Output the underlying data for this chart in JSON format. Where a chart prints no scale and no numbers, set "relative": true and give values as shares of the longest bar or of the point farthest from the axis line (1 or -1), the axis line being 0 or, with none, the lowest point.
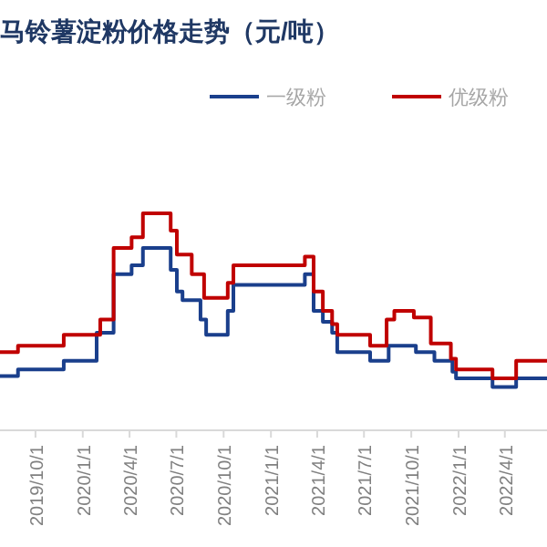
{
  "chart_data": {
    "type": "step",
    "title": "马铃薯淀粉价格走势（元/吨）",
    "relative": true,
    "legend": "top right",
    "grid": false,
    "xlim": [
      "2019-07-24",
      "2022-06-22"
    ],
    "xticks": [
      {
        "value": "2019-10-01",
        "label": "2019/10/1"
      },
      {
        "value": "2020-01-01",
        "label": "2020/1/1"
      },
      {
        "value": "2020-04-01",
        "label": "2020/4/1"
      },
      {
        "value": "2020-07-01",
        "label": "2020/7/1"
      },
      {
        "value": "2020-10-01",
        "label": "2020/10/1"
      },
      {
        "value": "2021-01-01",
        "label": "2021/1/1"
      },
      {
        "value": "2021-04-01",
        "label": "2021/4/1"
      },
      {
        "value": "2021-07-01",
        "label": "2021/7/1"
      },
      {
        "value": "2021-10-01",
        "label": "2021/10/1"
      },
      {
        "value": "2022-01-01",
        "label": "2022/1/1"
      },
      {
        "value": "2022-04-01",
        "label": "2022/4/1"
      }
    ],
    "series": [
      {
        "name": "一级粉",
        "color": "#1a3f8c",
        "x": [
          "2019-07-24",
          "2019-08-28",
          "2019-11-25",
          "2020-01-28",
          "2020-03-01",
          "2020-04-05",
          "2020-04-27",
          "2020-06-20",
          "2020-07-02",
          "2020-07-13",
          "2020-08-17",
          "2020-08-28",
          "2020-10-09",
          "2020-10-20",
          "2021-03-08",
          "2021-03-25",
          "2021-04-12",
          "2021-04-30",
          "2021-05-10",
          "2021-07-13",
          "2021-08-18",
          "2021-10-10",
          "2021-11-15",
          "2021-12-20",
          "2021-12-27",
          "2022-03-08",
          "2022-04-23",
          "2022-06-22"
        ],
        "values": [
          0.25,
          0.28,
          0.32,
          0.45,
          0.72,
          0.76,
          0.84,
          0.74,
          0.64,
          0.6,
          0.51,
          0.44,
          0.55,
          0.67,
          0.72,
          0.55,
          0.5,
          0.45,
          0.36,
          0.32,
          0.39,
          0.36,
          0.32,
          0.27,
          0.24,
          0.2,
          0.24,
          0.24
        ]
      },
      {
        "name": "优级粉",
        "color": "#c00000",
        "x": [
          "2019-07-24",
          "2019-08-28",
          "2019-11-25",
          "2020-02-04",
          "2020-03-01",
          "2020-04-05",
          "2020-04-27",
          "2020-06-20",
          "2020-07-02",
          "2020-07-31",
          "2020-08-24",
          "2020-10-09",
          "2020-10-20",
          "2021-03-08",
          "2021-03-25",
          "2021-04-12",
          "2021-04-30",
          "2021-05-10",
          "2021-07-13",
          "2021-08-14",
          "2021-08-29",
          "2021-10-06",
          "2021-11-08",
          "2021-12-17",
          "2021-12-27",
          "2022-03-08",
          "2022-04-23",
          "2022-06-22"
        ],
        "values": [
          0.36,
          0.39,
          0.44,
          0.51,
          0.84,
          0.89,
          1.0,
          0.92,
          0.81,
          0.72,
          0.61,
          0.68,
          0.76,
          0.8,
          0.64,
          0.55,
          0.49,
          0.44,
          0.39,
          0.51,
          0.55,
          0.52,
          0.4,
          0.33,
          0.28,
          0.24,
          0.32,
          0.32
        ]
      }
    ]
  }
}
